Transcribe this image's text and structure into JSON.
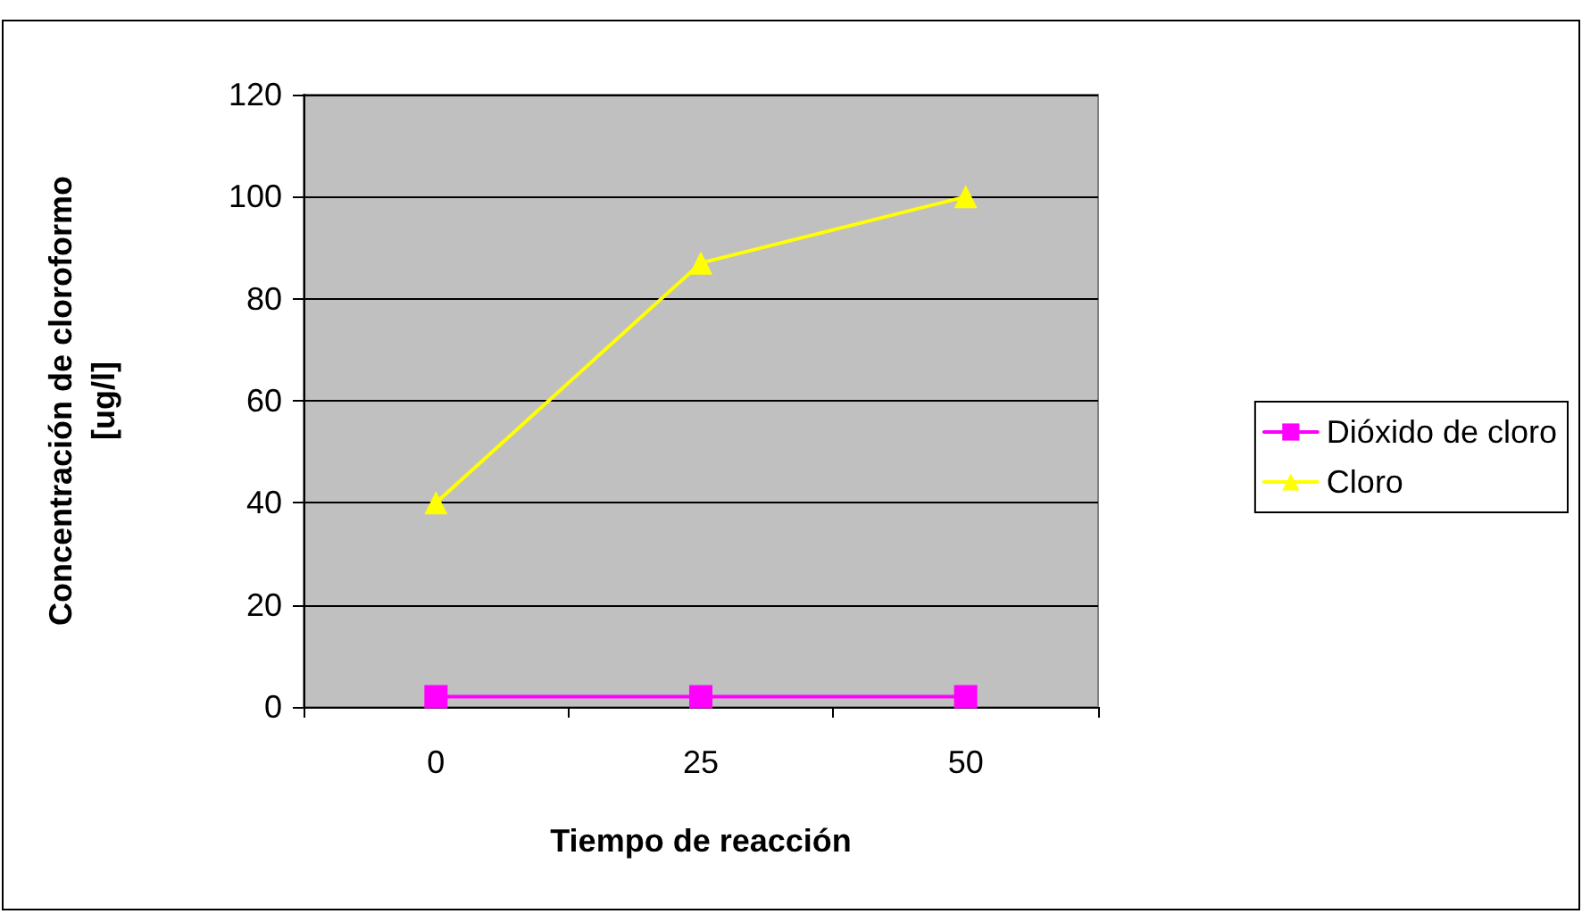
{
  "chart_data": {
    "type": "line",
    "xlabel": "Tiempo de reacción",
    "ylabel": "Concentración de cloroformo\n[ug/l]",
    "categories": [
      "0",
      "25",
      "50"
    ],
    "series": [
      {
        "name": "Dióxido de cloro",
        "color": "#ff00ff",
        "marker": "square",
        "values": [
          2,
          2,
          2
        ]
      },
      {
        "name": "Cloro",
        "color": "#ffff00",
        "marker": "triangle",
        "values": [
          40,
          87,
          100
        ]
      }
    ],
    "ylim": [
      0,
      120
    ],
    "yticks": [
      0,
      20,
      40,
      60,
      80,
      100,
      120
    ],
    "grid": "y",
    "legend": "right",
    "line_style": "solid"
  }
}
